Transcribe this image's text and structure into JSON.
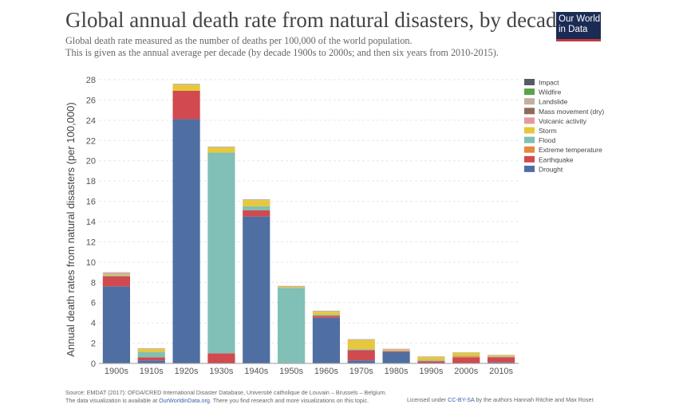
{
  "header": {
    "title": "Global annual death rate from natural disasters, by decade",
    "subtitle_line1": "Global death rate measured as the number of deaths per 100,000 of the world population.",
    "subtitle_line2": "This is given as the annual average per decade (by decade 1900s to 2000s; and then six years from 2010-2015).",
    "logo_line1": "Our World",
    "logo_line2": "in Data"
  },
  "footer": {
    "source": "Source: EMDAT (2017): OFDA/CRED International Disaster Database, Université catholique de Louvain – Brussels – Belgium.",
    "note_prefix": "The data visualization is available at ",
    "note_link": "OurWorldinData.org",
    "note_suffix": ". There you find research and more visualizations on this topic.",
    "license_prefix": "Licensed under ",
    "license_link": "CC-BY-SA",
    "license_suffix": " by the authors Hannah Ritchie and Max Roser."
  },
  "chart_data": {
    "type": "bar",
    "stacked": true,
    "title": "Global annual death rate from natural disasters, by decade",
    "ylabel": "Annual death rates from natural disasters (per 100,000)",
    "xlabel": "",
    "ylim": [
      0,
      28
    ],
    "yticks": [
      0,
      2,
      4,
      6,
      8,
      10,
      12,
      14,
      16,
      18,
      20,
      22,
      24,
      26,
      28
    ],
    "grid": true,
    "legend_placement": "right",
    "categories": [
      "1900s",
      "1910s",
      "1920s",
      "1930s",
      "1940s",
      "1950s",
      "1960s",
      "1970s",
      "1980s",
      "1990s",
      "2000s",
      "2010s"
    ],
    "series": [
      {
        "name": "Drought",
        "color": "#4f6fa3",
        "values": [
          7.6,
          0.3,
          24.1,
          0.0,
          14.5,
          0.0,
          4.5,
          0.3,
          1.1,
          0.0,
          0.0,
          0.1
        ]
      },
      {
        "name": "Earthquake",
        "color": "#d04a4f",
        "values": [
          1.0,
          0.3,
          2.8,
          1.0,
          0.6,
          0.05,
          0.2,
          1.0,
          0.1,
          0.2,
          0.6,
          0.5
        ]
      },
      {
        "name": "Extreme temperature",
        "color": "#e58a3c",
        "values": [
          0.0,
          0.0,
          0.0,
          0.0,
          0.0,
          0.0,
          0.0,
          0.0,
          0.0,
          0.05,
          0.1,
          0.05
        ]
      },
      {
        "name": "Flood",
        "color": "#80c0b6",
        "values": [
          0.1,
          0.5,
          0.0,
          19.8,
          0.4,
          7.4,
          0.1,
          0.1,
          0.05,
          0.1,
          0.05,
          0.05
        ]
      },
      {
        "name": "Storm",
        "color": "#e6c83a",
        "values": [
          0.1,
          0.3,
          0.6,
          0.5,
          0.6,
          0.1,
          0.3,
          0.9,
          0.05,
          0.3,
          0.3,
          0.1
        ]
      },
      {
        "name": "Volcanic activity",
        "color": "#e39a9e",
        "values": [
          0.1,
          0.0,
          0.0,
          0.0,
          0.0,
          0.0,
          0.0,
          0.0,
          0.05,
          0.0,
          0.0,
          0.0
        ]
      },
      {
        "name": "Mass movement (dry)",
        "color": "#8e6a5a",
        "values": [
          0.0,
          0.0,
          0.0,
          0.0,
          0.0,
          0.0,
          0.0,
          0.0,
          0.0,
          0.0,
          0.0,
          0.0
        ]
      },
      {
        "name": "Landslide",
        "color": "#c3b0a3",
        "values": [
          0.1,
          0.1,
          0.1,
          0.1,
          0.1,
          0.1,
          0.1,
          0.1,
          0.1,
          0.05,
          0.05,
          0.05
        ]
      },
      {
        "name": "Wildfire",
        "color": "#5aa34a",
        "values": [
          0.0,
          0.0,
          0.0,
          0.0,
          0.0,
          0.0,
          0.0,
          0.0,
          0.0,
          0.0,
          0.0,
          0.0
        ]
      },
      {
        "name": "Impact",
        "color": "#555a64",
        "values": [
          0.0,
          0.0,
          0.0,
          0.0,
          0.0,
          0.0,
          0.0,
          0.0,
          0.0,
          0.0,
          0.0,
          0.0
        ]
      }
    ]
  }
}
